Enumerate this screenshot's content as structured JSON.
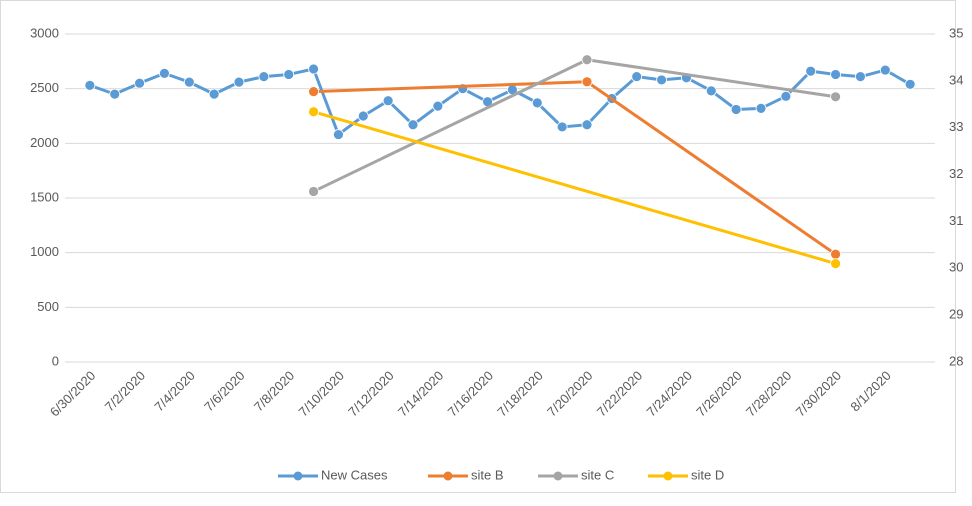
{
  "chart_data": {
    "type": "line",
    "x": [
      "6/30/2020",
      "7/1/2020",
      "7/2/2020",
      "7/3/2020",
      "7/4/2020",
      "7/5/2020",
      "7/6/2020",
      "7/7/2020",
      "7/8/2020",
      "7/9/2020",
      "7/10/2020",
      "7/11/2020",
      "7/12/2020",
      "7/13/2020",
      "7/14/2020",
      "7/15/2020",
      "7/16/2020",
      "7/17/2020",
      "7/18/2020",
      "7/19/2020",
      "7/20/2020",
      "7/21/2020",
      "7/22/2020",
      "7/23/2020",
      "7/24/2020",
      "7/25/2020",
      "7/26/2020",
      "7/27/2020",
      "7/28/2020",
      "7/29/2020",
      "7/30/2020",
      "7/31/2020",
      "8/1/2020",
      "8/2/2020"
    ],
    "series": [
      {
        "name": "New Cases",
        "color": "#5b9bd5",
        "values": [
          2530,
          2450,
          2550,
          2640,
          2560,
          2450,
          2560,
          2610,
          2630,
          2680,
          2080,
          2250,
          2390,
          2170,
          2340,
          2500,
          2380,
          2490,
          2370,
          2150,
          2170,
          2410,
          2610,
          2580,
          2600,
          2480,
          2310,
          2320,
          2430,
          2660,
          2630,
          2610,
          2670,
          2540
        ]
      },
      {
        "name": "site B",
        "color": "#ed7d31",
        "axis": "y2",
        "x": [
          "7/9/2020",
          "7/20/2020",
          "7/30/2020"
        ],
        "values": [
          33.77,
          33.98,
          30.3
        ]
      },
      {
        "name": "site C",
        "color": "#a5a5a5",
        "axis": "y2",
        "x": [
          "7/9/2020",
          "7/20/2020",
          "7/30/2020"
        ],
        "values": [
          31.64,
          34.45,
          33.66
        ]
      },
      {
        "name": "site D",
        "color": "#ffc000",
        "axis": "y2",
        "x": [
          "7/9/2020",
          "7/30/2020"
        ],
        "values": [
          33.34,
          30.1
        ]
      }
    ],
    "xticks": [
      "6/30/2020",
      "7/2/2020",
      "7/4/2020",
      "7/6/2020",
      "7/8/2020",
      "7/10/2020",
      "7/12/2020",
      "7/14/2020",
      "7/16/2020",
      "7/18/2020",
      "7/20/2020",
      "7/22/2020",
      "7/24/2020",
      "7/26/2020",
      "7/28/2020",
      "7/30/2020",
      "8/1/2020"
    ],
    "ylim": [
      0,
      3000
    ],
    "yticks": [
      0,
      500,
      1000,
      1500,
      2000,
      2500,
      3000
    ],
    "y2lim": [
      28,
      35
    ],
    "y2ticks": [
      28,
      29,
      30,
      31,
      32,
      33,
      34,
      35
    ],
    "grid": true,
    "legend": "bottom"
  }
}
